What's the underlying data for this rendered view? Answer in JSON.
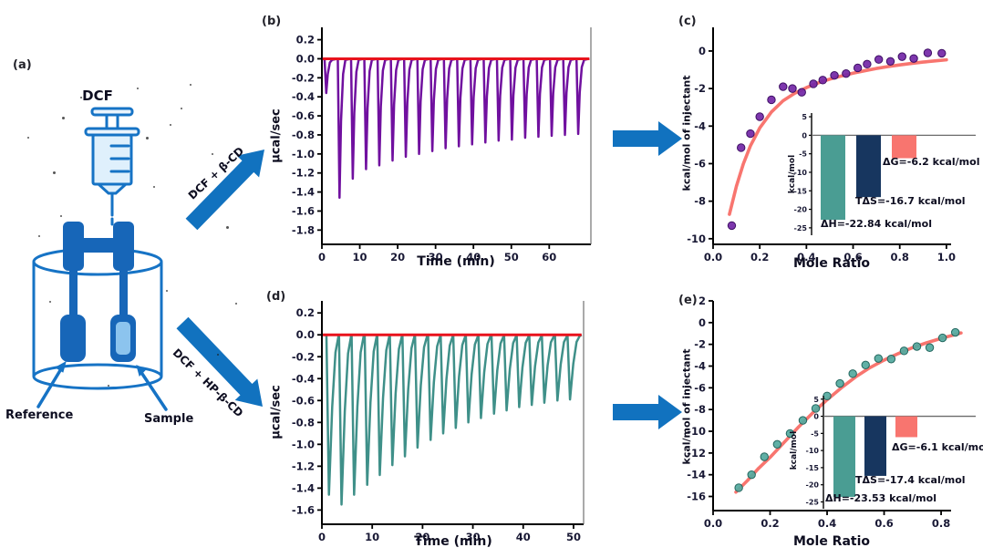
{
  "panels": {
    "apparatus_label": "(a)",
    "thermo_top_label": "(b)",
    "iso_top_label": "(c)",
    "thermo_bottom_label": "(d)",
    "iso_bottom_label": "(e)"
  },
  "apparatus": {
    "syringe_label": "DCF",
    "reference_cell_label": "Reference",
    "sample_cell_label": "Sample",
    "top_arrow_label": "DCF + β-CD",
    "bottom_arrow_label": "DCF + HP-β-CD"
  },
  "colors": {
    "apparatus_blue": "#1673c5",
    "cell_blue": "#1766b8",
    "arrow_blue": "#1172bf",
    "purple": "#70109f",
    "teal": "#3f9089",
    "baseline_red": "#e8131d",
    "fit_salmon": "#f8756f",
    "bar_teal": "#4a9d93",
    "bar_navy": "#17365f",
    "bar_salmon": "#f8756f"
  },
  "chart_data": [
    {
      "type": "line",
      "subtype": "thermogram",
      "title": "",
      "xlabel": "Time (min)",
      "ylabel": "µcal/sec",
      "xlim": [
        0,
        71
      ],
      "ylim": [
        -1.95,
        0.33
      ],
      "xticks": {
        "values": [
          0,
          10,
          20,
          30,
          40,
          50,
          60
        ],
        "labels": [
          "0",
          "10",
          "20",
          "30",
          "40",
          "50",
          "60"
        ]
      },
      "yticks": {
        "values": [
          0.2,
          0.0,
          -0.2,
          -0.4,
          -0.6,
          -0.8,
          -1.0,
          -1.2,
          -1.4,
          -1.6,
          -1.8
        ],
        "labels": [
          "0.2",
          "0.0",
          "-0.2",
          "-0.4",
          "-0.6",
          "-0.8",
          "-1.0",
          "-1.2",
          "-1.4",
          "-1.6",
          "-1.8"
        ]
      },
      "series": [
        {
          "name": "injection heat pulses",
          "color": "#70109f",
          "peaks": [
            [
              1,
              -0.36
            ],
            [
              4.5,
              -1.46
            ],
            [
              8,
              -1.26
            ],
            [
              11.5,
              -1.16
            ],
            [
              15,
              -1.12
            ],
            [
              18.5,
              -1.07
            ],
            [
              22,
              -1.03
            ],
            [
              25.5,
              -1.0
            ],
            [
              29,
              -0.97
            ],
            [
              32.5,
              -0.94
            ],
            [
              36,
              -0.92
            ],
            [
              39.5,
              -0.9
            ],
            [
              43,
              -0.88
            ],
            [
              46.5,
              -0.86
            ],
            [
              50,
              -0.85
            ],
            [
              53.5,
              -0.83
            ],
            [
              57,
              -0.82
            ],
            [
              60.5,
              -0.81
            ],
            [
              64,
              -0.8
            ],
            [
              67.5,
              -0.79
            ]
          ]
        },
        {
          "name": "baseline",
          "color": "#e8131d",
          "y": 0.0
        }
      ],
      "peak_shape": "narrow"
    },
    {
      "type": "line",
      "subtype": "thermogram",
      "title": "",
      "xlabel": "Time (min)",
      "ylabel": "µcal/sec",
      "xlim": [
        0,
        52
      ],
      "ylim": [
        -1.73,
        0.31
      ],
      "xticks": {
        "values": [
          0,
          10,
          20,
          30,
          40,
          50
        ],
        "labels": [
          "0",
          "10",
          "20",
          "30",
          "40",
          "50"
        ]
      },
      "yticks": {
        "values": [
          0.2,
          0.0,
          -0.2,
          -0.4,
          -0.6,
          -0.8,
          -1.0,
          -1.2,
          -1.4,
          -1.6
        ],
        "labels": [
          "0.2",
          "0.0",
          "-0.2",
          "-0.4",
          "-0.6",
          "-0.8",
          "-1.0",
          "-1.2",
          "-1.4",
          "-1.6"
        ]
      },
      "series": [
        {
          "name": "injection heat pulses",
          "color": "#3f9089",
          "peaks": [
            [
              1.2,
              -1.46
            ],
            [
              3.7,
              -1.55
            ],
            [
              6.2,
              -1.46
            ],
            [
              8.8,
              -1.37
            ],
            [
              11.3,
              -1.28
            ],
            [
              13.8,
              -1.19
            ],
            [
              16.3,
              -1.11
            ],
            [
              18.8,
              -1.03
            ],
            [
              21.4,
              -0.96
            ],
            [
              23.9,
              -0.9
            ],
            [
              26.4,
              -0.85
            ],
            [
              28.9,
              -0.8
            ],
            [
              31.4,
              -0.76
            ],
            [
              34,
              -0.72
            ],
            [
              36.5,
              -0.69
            ],
            [
              39,
              -0.66
            ],
            [
              41.5,
              -0.64
            ],
            [
              44,
              -0.62
            ],
            [
              46.6,
              -0.6
            ],
            [
              49.1,
              -0.59
            ]
          ]
        },
        {
          "name": "baseline",
          "color": "#e8131d",
          "y": 0.0
        }
      ],
      "peak_shape": "broad"
    },
    {
      "type": "scatter",
      "subtype": "binding-isotherm",
      "title": "",
      "xlabel": "Mole Ratio",
      "ylabel": "kcal/mol of injectant",
      "xlim": [
        0,
        1.02
      ],
      "ylim": [
        -10.3,
        1.26
      ],
      "xticks": {
        "values": [
          0,
          0.2,
          0.4,
          0.6,
          0.8,
          1.0
        ],
        "labels": [
          "0.0",
          "0.2",
          "0.4",
          "0.6",
          "0.8",
          "1.0"
        ]
      },
      "yticks": {
        "values": [
          0,
          -2,
          -4,
          -6,
          -8,
          -10
        ],
        "labels": [
          "0",
          "-2",
          "-4",
          "-6",
          "-8",
          "-10"
        ]
      },
      "point_color": "#7226a6",
      "point_edge": "#3d0f63",
      "fit_color": "#f8756f",
      "points": [
        [
          0.08,
          -9.3
        ],
        [
          0.12,
          -5.15
        ],
        [
          0.16,
          -4.4
        ],
        [
          0.2,
          -3.5
        ],
        [
          0.25,
          -2.6
        ],
        [
          0.3,
          -1.9
        ],
        [
          0.34,
          -2.0
        ],
        [
          0.38,
          -2.2
        ],
        [
          0.43,
          -1.75
        ],
        [
          0.47,
          -1.55
        ],
        [
          0.52,
          -1.3
        ],
        [
          0.57,
          -1.2
        ],
        [
          0.62,
          -0.9
        ],
        [
          0.66,
          -0.7
        ],
        [
          0.71,
          -0.45
        ],
        [
          0.76,
          -0.55
        ],
        [
          0.81,
          -0.3
        ],
        [
          0.86,
          -0.4
        ],
        [
          0.92,
          -0.1
        ],
        [
          0.98,
          -0.12
        ]
      ],
      "fit": [
        [
          0.07,
          -8.7
        ],
        [
          0.1,
          -7.2
        ],
        [
          0.13,
          -6.0
        ],
        [
          0.16,
          -5.05
        ],
        [
          0.2,
          -4.1
        ],
        [
          0.25,
          -3.25
        ],
        [
          0.3,
          -2.65
        ],
        [
          0.35,
          -2.25
        ],
        [
          0.4,
          -1.95
        ],
        [
          0.45,
          -1.7
        ],
        [
          0.5,
          -1.5
        ],
        [
          0.55,
          -1.33
        ],
        [
          0.6,
          -1.18
        ],
        [
          0.65,
          -1.05
        ],
        [
          0.7,
          -0.93
        ],
        [
          0.75,
          -0.83
        ],
        [
          0.8,
          -0.74
        ],
        [
          0.85,
          -0.66
        ],
        [
          0.9,
          -0.59
        ],
        [
          0.95,
          -0.53
        ],
        [
          1.0,
          -0.47
        ]
      ]
    },
    {
      "type": "scatter",
      "subtype": "binding-isotherm",
      "title": "",
      "xlabel": "Mole Ratio",
      "ylabel": "kcal/mol of injectant",
      "xlim": [
        0,
        0.835
      ],
      "ylim": [
        -17.3,
        2.0
      ],
      "xticks": {
        "values": [
          0,
          0.2,
          0.4,
          0.6,
          0.8
        ],
        "labels": [
          "0.0",
          "0.2",
          "0.4",
          "0.6",
          "0.8"
        ]
      },
      "yticks": {
        "values": [
          2,
          0,
          -2,
          -4,
          -6,
          -8,
          -10,
          -12,
          -14,
          -16
        ],
        "labels": [
          "2",
          "0",
          "-2",
          "-4",
          "-6",
          "-8",
          "-10",
          "-12",
          "-14",
          "-16"
        ]
      },
      "point_color": "#53a99e",
      "point_edge": "#23665e",
      "fit_color": "#f8756f",
      "points": [
        [
          0.09,
          -15.2
        ],
        [
          0.135,
          -14.0
        ],
        [
          0.18,
          -12.35
        ],
        [
          0.225,
          -11.2
        ],
        [
          0.27,
          -10.2
        ],
        [
          0.315,
          -9.0
        ],
        [
          0.36,
          -7.9
        ],
        [
          0.4,
          -6.75
        ],
        [
          0.445,
          -5.6
        ],
        [
          0.49,
          -4.7
        ],
        [
          0.535,
          -3.9
        ],
        [
          0.58,
          -3.3
        ],
        [
          0.625,
          -3.35
        ],
        [
          0.67,
          -2.6
        ],
        [
          0.715,
          -2.2
        ],
        [
          0.76,
          -2.3
        ],
        [
          0.805,
          -1.4
        ],
        [
          0.85,
          -0.9
        ]
      ],
      "fit": [
        [
          0.08,
          -15.6
        ],
        [
          0.12,
          -14.55
        ],
        [
          0.16,
          -13.4
        ],
        [
          0.2,
          -12.4
        ],
        [
          0.25,
          -11.0
        ],
        [
          0.3,
          -9.6
        ],
        [
          0.35,
          -8.3
        ],
        [
          0.4,
          -7.1
        ],
        [
          0.45,
          -6.0
        ],
        [
          0.5,
          -5.0
        ],
        [
          0.55,
          -4.15
        ],
        [
          0.6,
          -3.45
        ],
        [
          0.65,
          -2.85
        ],
        [
          0.7,
          -2.3
        ],
        [
          0.75,
          -1.85
        ],
        [
          0.8,
          -1.45
        ],
        [
          0.85,
          -1.1
        ],
        [
          0.87,
          -0.95
        ]
      ]
    },
    {
      "type": "bar",
      "subtype": "thermodynamics-inset",
      "title": "",
      "ylabel": "kcal/mol",
      "categories": [
        "ΔH",
        "TΔS",
        "ΔG"
      ],
      "values": [
        -22.84,
        -16.7,
        -6.2
      ],
      "bar_colors": [
        "#4a9d93",
        "#17365f",
        "#f8756f"
      ],
      "ylim": [
        -27,
        6
      ],
      "yticks": {
        "values": [
          5,
          0,
          -5,
          -10,
          -15,
          -20,
          -25
        ],
        "labels": [
          "5",
          "0",
          "-5",
          "-10",
          "-15",
          "-20",
          "-25"
        ]
      },
      "annotations": [
        "ΔH=-22.84 kcal/mol",
        "TΔS=-16.7 kcal/mol",
        "ΔG=-6.2 kcal/mol"
      ]
    },
    {
      "type": "bar",
      "subtype": "thermodynamics-inset",
      "title": "",
      "ylabel": "kcal/mol",
      "categories": [
        "ΔH",
        "TΔS",
        "ΔG"
      ],
      "values": [
        -23.53,
        -17.4,
        -6.1
      ],
      "bar_colors": [
        "#4a9d93",
        "#17365f",
        "#f8756f"
      ],
      "ylim": [
        -27,
        6
      ],
      "yticks": {
        "values": [
          5,
          0,
          -5,
          -10,
          -15,
          -20,
          -25
        ],
        "labels": [
          "5",
          "0",
          "-5",
          "-10",
          "-15",
          "-20",
          "-25"
        ]
      },
      "annotations": [
        "ΔH=-23.53 kcal/mol",
        "TΔS=-17.4 kcal/mol",
        "ΔG=-6.1 kcal/mol"
      ]
    }
  ]
}
